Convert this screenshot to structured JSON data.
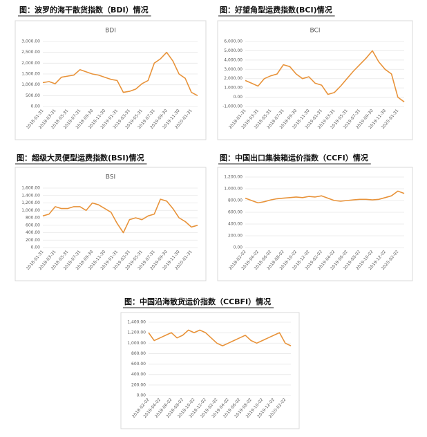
{
  "chart_data": [
    {
      "type": "line",
      "heading": "图：波罗的海干散货指数（BDI）情况",
      "title": "BDI",
      "color": "#e8933a",
      "grid": true,
      "categories": [
        "2018-01-31",
        null,
        "2018-03-31",
        null,
        "2018-05-31",
        null,
        "2018-07-31",
        null,
        "2018-09-30",
        null,
        "2018-11-30",
        null,
        "2019-01-31",
        null,
        "2019-03-31",
        null,
        "2019-05-31",
        null,
        "2019-07-31",
        null,
        "2019-09-30",
        null,
        "2019-11-30",
        null,
        "2020-01-31",
        null
      ],
      "values": [
        1100,
        1150,
        1050,
        1350,
        1400,
        1450,
        1700,
        1600,
        1500,
        1450,
        1350,
        1250,
        1200,
        650,
        700,
        800,
        1050,
        1200,
        2000,
        2200,
        2500,
        2100,
        1500,
        1300,
        650,
        500
      ],
      "ylim": [
        0,
        3000
      ],
      "yticks": [
        {
          "value": 0,
          "label": "0.00"
        },
        {
          "value": 500,
          "label": "500.00"
        },
        {
          "value": 1000,
          "label": "1,000.00"
        },
        {
          "value": 1500,
          "label": "1,500.00"
        },
        {
          "value": 2000,
          "label": "2,000.00"
        },
        {
          "value": 2500,
          "label": "2,500.00"
        },
        {
          "value": 3000,
          "label": "3,000.00"
        }
      ]
    },
    {
      "type": "line",
      "heading": "图：好望角型运费指数(BCI)情况",
      "title": "BCI",
      "color": "#e8933a",
      "grid": true,
      "categories": [
        "2018-01-31",
        null,
        "2018-03-31",
        null,
        "2018-05-31",
        null,
        "2018-07-31",
        null,
        "2018-09-30",
        null,
        "2018-11-30",
        null,
        "2019-01-31",
        null,
        "2019-03-31",
        null,
        "2019-05-31",
        null,
        "2019-07-31",
        null,
        "2019-09-30",
        null,
        "2019-11-30",
        null,
        "2020-01-31",
        null
      ],
      "values": [
        1800,
        1500,
        1200,
        2000,
        2300,
        2500,
        3500,
        3300,
        2500,
        2000,
        2200,
        1500,
        1300,
        300,
        500,
        1200,
        2000,
        2800,
        3500,
        4200,
        5000,
        3800,
        3000,
        2500,
        0,
        -500
      ],
      "ylim": [
        -1000,
        6000
      ],
      "yticks": [
        {
          "value": -1000,
          "label": "-1,000.00"
        },
        {
          "value": 0,
          "label": "0.00"
        },
        {
          "value": 1000,
          "label": "1,000.00"
        },
        {
          "value": 2000,
          "label": "2,000.00"
        },
        {
          "value": 3000,
          "label": "3,000.00"
        },
        {
          "value": 4000,
          "label": "4,000.00"
        },
        {
          "value": 5000,
          "label": "5,000.00"
        },
        {
          "value": 6000,
          "label": "6,000.00"
        }
      ]
    },
    {
      "type": "line",
      "heading": "图：超级大灵便型运费指数(BSI)情况",
      "title": "BSI",
      "color": "#e8933a",
      "grid": true,
      "categories": [
        "2018-01-31",
        null,
        "2018-03-31",
        null,
        "2018-05-31",
        null,
        "2018-07-31",
        null,
        "2018-09-30",
        null,
        "2018-11-30",
        null,
        "2019-01-31",
        null,
        "2019-03-31",
        null,
        "2019-05-31",
        null,
        "2019-07-31",
        null,
        "2019-09-30",
        null,
        "2019-11-30",
        null,
        "2020-01-31",
        null
      ],
      "values": [
        850,
        900,
        1100,
        1050,
        1050,
        1100,
        1100,
        1000,
        1200,
        1150,
        1050,
        950,
        650,
        400,
        750,
        800,
        750,
        850,
        900,
        1300,
        1250,
        1050,
        800,
        700,
        550,
        600
      ],
      "ylim": [
        0,
        1600
      ],
      "yticks": [
        {
          "value": 0,
          "label": "0.00"
        },
        {
          "value": 200,
          "label": "200.00"
        },
        {
          "value": 400,
          "label": "400.00"
        },
        {
          "value": 600,
          "label": "600.00"
        },
        {
          "value": 800,
          "label": "800.00"
        },
        {
          "value": 1000,
          "label": "1,000.00"
        },
        {
          "value": 1200,
          "label": "1,200.00"
        },
        {
          "value": 1400,
          "label": "1,400.00"
        },
        {
          "value": 1600,
          "label": "1,600.00"
        }
      ]
    },
    {
      "type": "line",
      "heading": "图：中国出口集装箱运价指数（CCFI）情况",
      "color": "#e8933a",
      "grid": true,
      "categories": [
        "2018-02-02",
        null,
        "2018-04-02",
        null,
        "2018-06-02",
        null,
        "2018-08-02",
        null,
        "2018-10-02",
        null,
        "2018-12-02",
        null,
        "2019-02-02",
        null,
        "2019-04-02",
        null,
        "2019-06-02",
        null,
        "2019-08-02",
        null,
        "2019-10-02",
        null,
        "2019-12-02",
        null,
        "2020-02-02",
        null
      ],
      "values": [
        840,
        800,
        760,
        780,
        810,
        830,
        840,
        850,
        860,
        850,
        870,
        860,
        880,
        840,
        800,
        790,
        800,
        810,
        820,
        820,
        810,
        820,
        850,
        880,
        960,
        920
      ],
      "ylim": [
        0,
        1200
      ],
      "yticks": [
        {
          "value": 0,
          "label": "0.00"
        },
        {
          "value": 200,
          "label": "200.00"
        },
        {
          "value": 400,
          "label": "400.00"
        },
        {
          "value": 600,
          "label": "600.00"
        },
        {
          "value": 800,
          "label": "800.00"
        },
        {
          "value": 1000,
          "label": "1,000.00"
        },
        {
          "value": 1200,
          "label": "1,200.00"
        }
      ]
    },
    {
      "type": "line",
      "heading": "图：中国沿海散货运价指数（CCBFI）情况",
      "color": "#e8933a",
      "grid": true,
      "categories": [
        "2018-02-02",
        null,
        "2018-04-02",
        null,
        "2018-06-02",
        null,
        "2018-08-02",
        null,
        "2018-10-02",
        null,
        "2018-12-02",
        null,
        "2019-02-02",
        null,
        "2019-04-02",
        null,
        "2019-06-02",
        null,
        "2019-08-02",
        null,
        "2019-10-02",
        null,
        "2019-12-02",
        null,
        "2020-02-02",
        null
      ],
      "values": [
        1200,
        1050,
        1100,
        1150,
        1200,
        1100,
        1150,
        1250,
        1200,
        1250,
        1200,
        1100,
        1000,
        950,
        1000,
        1050,
        1100,
        1150,
        1050,
        1000,
        1050,
        1100,
        1150,
        1200,
        1000,
        950
      ],
      "ylim": [
        0,
        1400
      ],
      "yticks": [
        {
          "value": 0,
          "label": "0.00"
        },
        {
          "value": 200,
          "label": "200.00"
        },
        {
          "value": 400,
          "label": "400.00"
        },
        {
          "value": 600,
          "label": "600.00"
        },
        {
          "value": 800,
          "label": "800.00"
        },
        {
          "value": 1000,
          "label": "1,000.00"
        },
        {
          "value": 1200,
          "label": "1,200.00"
        },
        {
          "value": 1400,
          "label": "1,400.00"
        }
      ]
    }
  ]
}
